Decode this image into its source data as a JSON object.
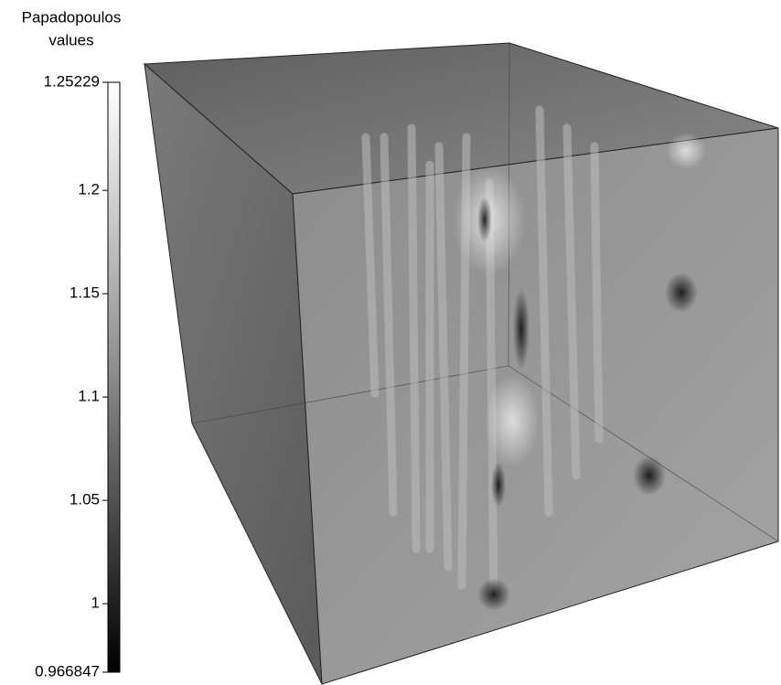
{
  "colorbar": {
    "title": [
      "Papadopoulos",
      "values"
    ],
    "limits": [
      0.966847,
      1.25229
    ],
    "ticks": [
      1,
      1.05,
      1.1,
      1.15,
      1.2
    ]
  }
}
